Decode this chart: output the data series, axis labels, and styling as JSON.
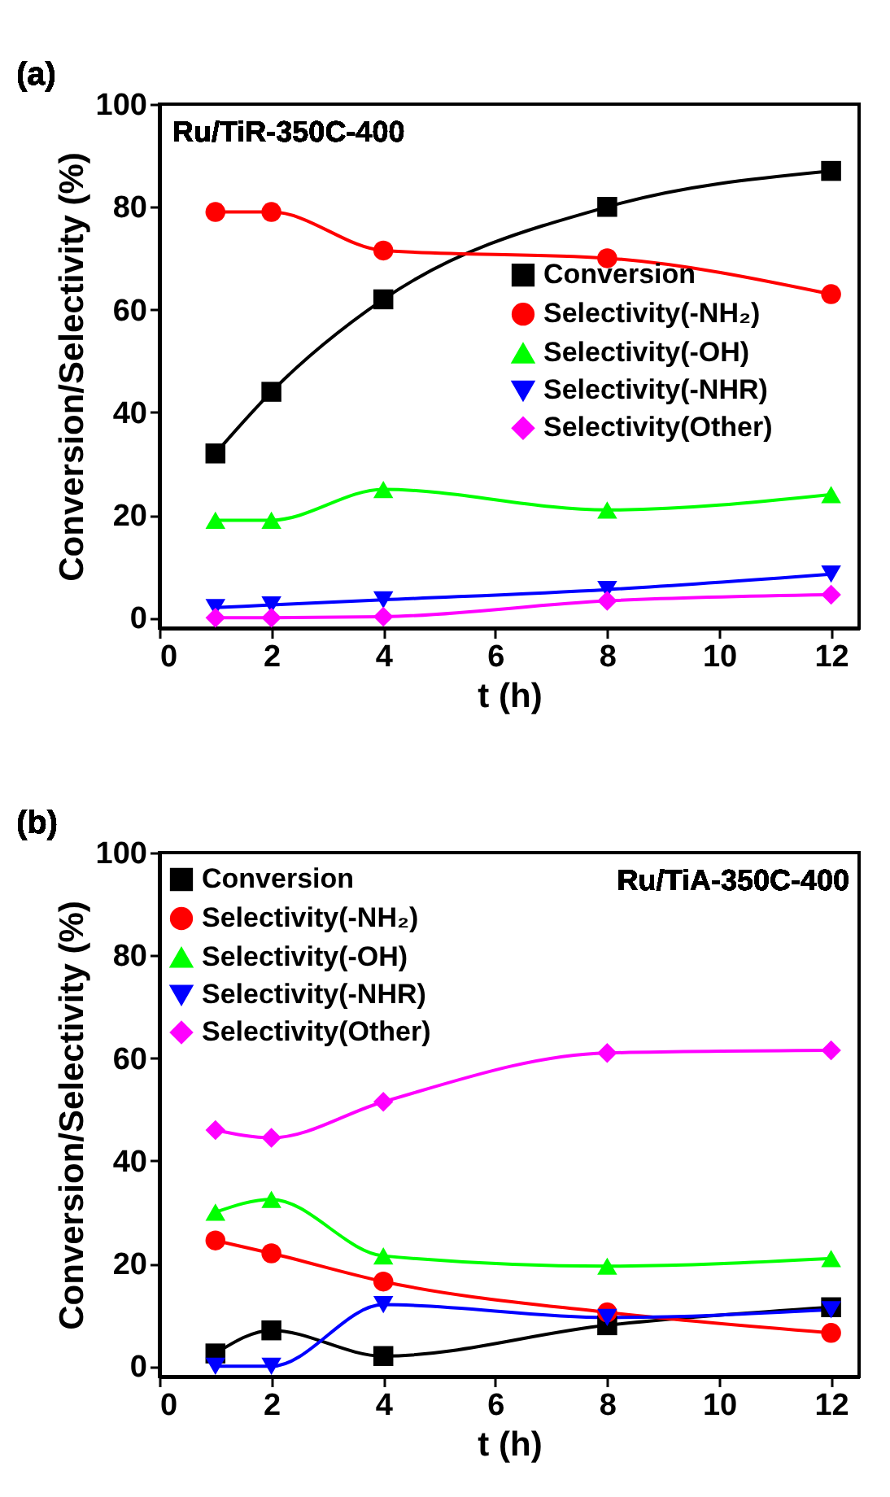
{
  "chart_data": [
    {
      "type": "line",
      "xlabel": "t (h)",
      "ylabel": "Conversion/Selectivity (%)",
      "annotations": [
        "(a)",
        "Ru/TiR-350C-400"
      ],
      "x": [
        1,
        2,
        4,
        8,
        12
      ],
      "xlim": [
        0,
        12.5
      ],
      "xticks": [
        0,
        2,
        4,
        6,
        8,
        10,
        12
      ],
      "ylim": [
        -2,
        100
      ],
      "yticks": [
        0,
        20,
        40,
        60,
        80,
        100
      ],
      "grid": false,
      "legend": "right",
      "line_style": "solid",
      "series": [
        {
          "name": "Conversion",
          "color": "#000000",
          "marker": "square",
          "values": [
            32,
            44,
            62,
            80,
            87
          ]
        },
        {
          "name": "Selectivity(-NH₂)",
          "color": "#ff0000",
          "marker": "circle",
          "values": [
            79,
            79,
            71.5,
            70,
            63
          ]
        },
        {
          "name": "Selectivity(-OH)",
          "color": "#00ff00",
          "marker": "triangle",
          "values": [
            19,
            19,
            25,
            21,
            24
          ]
        },
        {
          "name": "Selectivity(-NHR)",
          "color": "#0000ff",
          "marker": "triangle-down",
          "values": [
            2,
            2.5,
            3.5,
            5.5,
            8.5
          ]
        },
        {
          "name": "Selectivity(Other)",
          "color": "#ff00ff",
          "marker": "diamond",
          "values": [
            0,
            0,
            0.2,
            3.3,
            4.5
          ]
        }
      ]
    },
    {
      "type": "line",
      "xlabel": "t (h)",
      "ylabel": "Conversion/Selectivity (%)",
      "annotations": [
        "(b)",
        "Ru/TiA-350C-400"
      ],
      "x": [
        1,
        2,
        4,
        8,
        12
      ],
      "xlim": [
        0,
        12.5
      ],
      "xticks": [
        0,
        2,
        4,
        6,
        8,
        10,
        12
      ],
      "ylim": [
        -2,
        100
      ],
      "yticks": [
        0,
        20,
        40,
        60,
        80,
        100
      ],
      "grid": false,
      "legend": "top left",
      "line_style": "solid",
      "series": [
        {
          "name": "Conversion",
          "color": "#000000",
          "marker": "square",
          "values": [
            2.5,
            7,
            2,
            8,
            11.5
          ]
        },
        {
          "name": "Selectivity(-NH₂)",
          "color": "#ff0000",
          "marker": "circle",
          "values": [
            24.5,
            22,
            16.5,
            10.5,
            6.5
          ]
        },
        {
          "name": "Selectivity(-OH)",
          "color": "#00ff00",
          "marker": "triangle",
          "values": [
            30,
            32.5,
            21.5,
            19.5,
            21
          ]
        },
        {
          "name": "Selectivity(-NHR)",
          "color": "#0000ff",
          "marker": "triangle-down",
          "values": [
            0,
            0,
            12,
            9.5,
            11
          ]
        },
        {
          "name": "Selectivity(Other)",
          "color": "#ff00ff",
          "marker": "diamond",
          "values": [
            46,
            44.5,
            51.5,
            61,
            61.5
          ]
        }
      ]
    }
  ]
}
